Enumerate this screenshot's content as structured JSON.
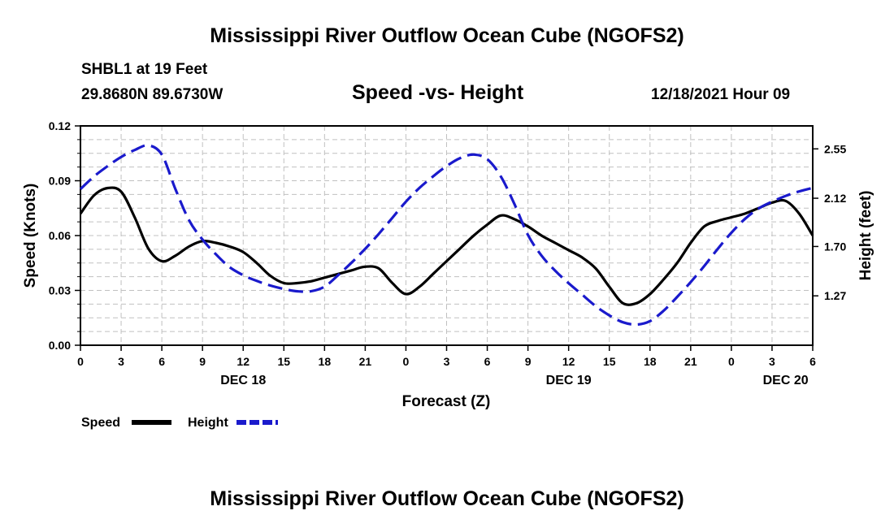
{
  "page": {
    "title": "Mississippi River Outflow Ocean Cube (NGOFS2)",
    "station_line": "SHBL1 at 19 Feet",
    "coords": "29.8680N  89.6730W",
    "datetime": "12/18/2021 Hour 09",
    "footer_title": "Mississippi River Outflow Ocean Cube (NGOFS2)"
  },
  "colors": {
    "speed": "#000000",
    "height": "#1a1acc",
    "grid": "#c0c0c0"
  },
  "chart_data": {
    "type": "line",
    "title": "Speed -vs- Height",
    "xlabel": "Forecast (Z)",
    "ylabel": "Speed (Knots)",
    "y2label": "Height (feet)",
    "xlim": [
      0,
      54
    ],
    "ylim": [
      0,
      0.12
    ],
    "y2lim": [
      0.84,
      2.75
    ],
    "x_ticks": [
      0,
      3,
      6,
      9,
      12,
      15,
      18,
      21,
      24,
      27,
      30,
      33,
      36,
      39,
      42,
      45,
      48,
      51,
      54
    ],
    "x_tick_labels": [
      "0",
      "3",
      "6",
      "9",
      "12",
      "15",
      "18",
      "21",
      "0",
      "3",
      "6",
      "9",
      "12",
      "15",
      "18",
      "21",
      "0",
      "3",
      "6"
    ],
    "date_labels": [
      {
        "x": 12,
        "label": "DEC 18"
      },
      {
        "x": 36,
        "label": "DEC 19"
      },
      {
        "x": 52,
        "label": "DEC 20"
      }
    ],
    "y_ticks": [
      0.0,
      0.03,
      0.06,
      0.09,
      0.12
    ],
    "y_tick_labels": [
      "0.00",
      "0.03",
      "0.06",
      "0.09",
      "0.12"
    ],
    "y2_ticks": [
      1.27,
      1.7,
      2.12,
      2.55
    ],
    "y2_tick_labels": [
      "1.27",
      "1.70",
      "2.12",
      "2.55"
    ],
    "grid": true,
    "legend": {
      "position": "bottom-left"
    },
    "series": [
      {
        "name": "Speed",
        "axis": "left",
        "style": "solid",
        "x": [
          0,
          1,
          2,
          3,
          4,
          5,
          6,
          7,
          8,
          9,
          10,
          11,
          12,
          13,
          14,
          15,
          16,
          17,
          18,
          19,
          20,
          21,
          22,
          23,
          24,
          25,
          26,
          27,
          28,
          29,
          30,
          31,
          32,
          33,
          34,
          35,
          36,
          37,
          38,
          39,
          40,
          41,
          42,
          43,
          44,
          45,
          46,
          47,
          48,
          49,
          50,
          51,
          52,
          53,
          54
        ],
        "values": [
          0.072,
          0.082,
          0.086,
          0.084,
          0.07,
          0.053,
          0.046,
          0.049,
          0.054,
          0.057,
          0.056,
          0.054,
          0.051,
          0.045,
          0.038,
          0.034,
          0.034,
          0.035,
          0.037,
          0.039,
          0.041,
          0.043,
          0.042,
          0.034,
          0.028,
          0.032,
          0.039,
          0.046,
          0.053,
          0.06,
          0.066,
          0.071,
          0.069,
          0.065,
          0.06,
          0.056,
          0.052,
          0.048,
          0.042,
          0.032,
          0.023,
          0.023,
          0.028,
          0.036,
          0.045,
          0.056,
          0.065,
          0.068,
          0.07,
          0.072,
          0.075,
          0.078,
          0.079,
          0.072,
          0.06
        ]
      },
      {
        "name": "Height",
        "axis": "right",
        "style": "dashed",
        "x": [
          0,
          1,
          2,
          3,
          4,
          5,
          6,
          7,
          8,
          9,
          10,
          11,
          12,
          13,
          14,
          15,
          16,
          17,
          18,
          19,
          20,
          21,
          22,
          23,
          24,
          25,
          26,
          27,
          28,
          29,
          30,
          31,
          32,
          33,
          34,
          35,
          36,
          37,
          38,
          39,
          40,
          41,
          42,
          43,
          44,
          45,
          46,
          47,
          48,
          49,
          50,
          51,
          52,
          53,
          54
        ],
        "values": [
          2.2,
          2.31,
          2.4,
          2.48,
          2.54,
          2.58,
          2.5,
          2.2,
          1.93,
          1.76,
          1.63,
          1.52,
          1.45,
          1.4,
          1.36,
          1.33,
          1.31,
          1.31,
          1.35,
          1.45,
          1.56,
          1.68,
          1.81,
          1.95,
          2.09,
          2.21,
          2.31,
          2.4,
          2.47,
          2.5,
          2.46,
          2.31,
          2.07,
          1.8,
          1.62,
          1.49,
          1.38,
          1.28,
          1.18,
          1.1,
          1.04,
          1.02,
          1.05,
          1.14,
          1.26,
          1.39,
          1.53,
          1.68,
          1.82,
          1.94,
          2.03,
          2.09,
          2.14,
          2.18,
          2.21
        ]
      }
    ]
  }
}
